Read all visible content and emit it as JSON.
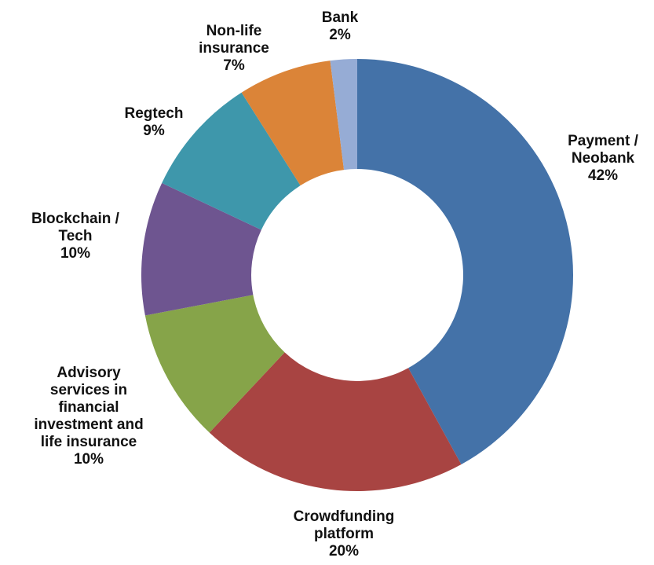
{
  "chart_data": {
    "type": "pie",
    "donut": true,
    "title": "",
    "legend": "none",
    "slices": [
      {
        "label_lines": [
          "Payment /",
          "Neobank"
        ],
        "value": 42,
        "value_label": "42%",
        "color": "#4472a8"
      },
      {
        "label_lines": [
          "Crowdfunding",
          "platform"
        ],
        "value": 20,
        "value_label": "20%",
        "color": "#a84442"
      },
      {
        "label_lines": [
          "Advisory",
          "services in",
          "financial",
          "investment and",
          "life insurance"
        ],
        "value": 10,
        "value_label": "10%",
        "color": "#86a449"
      },
      {
        "label_lines": [
          "Blockchain /",
          "Tech"
        ],
        "value": 10,
        "value_label": "10%",
        "color": "#6e5590"
      },
      {
        "label_lines": [
          "Regtech"
        ],
        "value": 9,
        "value_label": "9%",
        "color": "#3e97ab"
      },
      {
        "label_lines": [
          "Non-life",
          "insurance"
        ],
        "value": 7,
        "value_label": "7%",
        "color": "#db8438"
      },
      {
        "label_lines": [
          "Bank"
        ],
        "value": 2,
        "value_label": "2%",
        "color": "#96acd5"
      }
    ]
  }
}
